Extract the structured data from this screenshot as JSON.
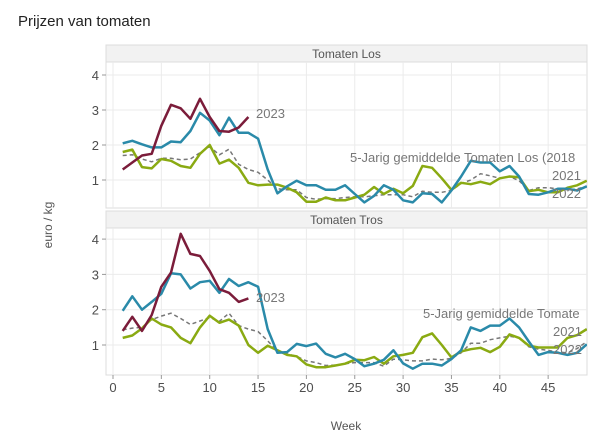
{
  "chart_data": {
    "type": "line",
    "title": "Prijzen van tomaten",
    "xlabel": "Week",
    "ylabel": "euro / kg",
    "xlim": [
      0,
      49
    ],
    "ylim": [
      0.15,
      4.35
    ],
    "x_ticks": [
      0,
      5,
      10,
      15,
      20,
      25,
      30,
      35,
      40,
      45
    ],
    "y_ticks": [
      1,
      2,
      3,
      4
    ],
    "grid": true,
    "colors": {
      "2023": "#7b1c3a",
      "2022": "#2a8aa9",
      "2021": "#8aaa12",
      "avg": "#777777"
    },
    "panels": [
      {
        "strip": "Tomaten Los",
        "labels": {
          "2023": "2023",
          "avg": "5-Jarig gemiddelde Tomaten Los (2018",
          "2021": "2021",
          "2022": "2022"
        },
        "series": [
          {
            "key": "avg",
            "dashed": true,
            "values": [
              1.7,
              1.72,
              1.6,
              1.52,
              1.62,
              1.62,
              1.58,
              1.6,
              1.78,
              1.95,
              1.72,
              1.88,
              1.45,
              1.3,
              1.22,
              1.0,
              0.75,
              0.72,
              0.72,
              0.5,
              0.45,
              0.47,
              0.47,
              0.5,
              0.52,
              0.52,
              0.55,
              0.58,
              0.58,
              0.58,
              0.52,
              0.68,
              0.65,
              0.65,
              0.7,
              0.9,
              1.0,
              1.18,
              1.12,
              1.05,
              1.1,
              0.98,
              0.7,
              0.78,
              0.78,
              0.75,
              0.72,
              0.75,
              0.82
            ]
          },
          {
            "key": "2021",
            "values": [
              1.8,
              1.87,
              1.37,
              1.33,
              1.6,
              1.55,
              1.4,
              1.35,
              1.75,
              2.0,
              1.47,
              1.58,
              1.35,
              0.92,
              0.85,
              0.87,
              0.87,
              0.78,
              0.65,
              0.38,
              0.38,
              0.5,
              0.42,
              0.42,
              0.5,
              0.58,
              0.8,
              0.6,
              0.75,
              0.62,
              0.83,
              1.4,
              1.35,
              1.05,
              0.72,
              0.92,
              0.88,
              0.95,
              0.88,
              1.05,
              1.1,
              1.08,
              0.68,
              0.72,
              0.65,
              0.65,
              0.78,
              0.85,
              0.98
            ]
          },
          {
            "key": "2022",
            "values": [
              2.05,
              2.12,
              2.02,
              1.93,
              1.93,
              2.1,
              2.08,
              2.4,
              2.92,
              2.7,
              2.28,
              2.78,
              2.35,
              2.35,
              2.18,
              1.3,
              0.62,
              0.82,
              0.98,
              0.85,
              0.85,
              0.72,
              0.72,
              0.85,
              0.6,
              0.36,
              0.55,
              0.85,
              0.72,
              0.42,
              0.36,
              0.62,
              0.6,
              0.36,
              0.7,
              1.1,
              1.55,
              1.5,
              1.5,
              1.25,
              1.4,
              1.1,
              0.6,
              0.58,
              0.65,
              0.75,
              0.75,
              0.7,
              0.82
            ]
          },
          {
            "key": "2023",
            "values": [
              1.3,
              1.5,
              1.7,
              1.75,
              2.55,
              3.15,
              3.05,
              2.75,
              3.32,
              2.8,
              2.4,
              2.38,
              2.5,
              2.8
            ]
          }
        ]
      },
      {
        "strip": "Tomaten Tros",
        "labels": {
          "2023": "2023",
          "avg": "5-Jarig gemiddelde Tomate",
          "2021": "2021",
          "2022": "2022"
        },
        "series": [
          {
            "key": "avg",
            "dashed": true,
            "values": [
              1.43,
              1.48,
              1.5,
              1.72,
              1.82,
              1.9,
              1.75,
              1.58,
              1.68,
              1.78,
              1.67,
              1.9,
              1.55,
              1.45,
              1.38,
              1.12,
              0.82,
              0.75,
              0.68,
              0.55,
              0.5,
              0.42,
              0.43,
              0.47,
              0.5,
              0.5,
              0.5,
              0.4,
              0.6,
              0.58,
              0.55,
              0.55,
              0.6,
              0.58,
              0.62,
              0.78,
              1.05,
              1.05,
              1.15,
              1.2,
              1.25,
              1.2,
              0.95,
              0.88,
              0.85,
              0.8,
              0.78,
              0.9,
              1.1
            ]
          },
          {
            "key": "2021",
            "values": [
              1.2,
              1.27,
              1.47,
              1.75,
              1.58,
              1.5,
              1.2,
              1.05,
              1.5,
              1.83,
              1.63,
              1.72,
              1.55,
              1.0,
              0.78,
              0.98,
              0.85,
              0.72,
              0.68,
              0.45,
              0.37,
              0.37,
              0.42,
              0.47,
              0.58,
              0.57,
              0.66,
              0.47,
              0.68,
              0.72,
              0.78,
              1.22,
              1.33,
              1.0,
              0.65,
              0.82,
              0.88,
              0.92,
              0.8,
              0.95,
              1.3,
              1.2,
              0.98,
              0.93,
              0.93,
              0.93,
              1.2,
              1.28,
              1.45
            ]
          },
          {
            "key": "2022",
            "values": [
              1.97,
              2.38,
              2.0,
              2.22,
              2.45,
              3.03,
              3.0,
              2.6,
              2.78,
              2.82,
              2.48,
              2.87,
              2.67,
              2.78,
              2.65,
              1.45,
              0.78,
              0.8,
              1.03,
              0.97,
              1.04,
              0.75,
              0.65,
              0.75,
              0.6,
              0.4,
              0.47,
              0.58,
              0.85,
              0.48,
              0.33,
              0.47,
              0.47,
              0.42,
              0.6,
              0.85,
              1.5,
              1.4,
              1.55,
              1.55,
              1.75,
              1.5,
              1.1,
              0.72,
              0.8,
              0.78,
              0.72,
              0.78,
              1.02
            ]
          },
          {
            "key": "2023",
            "values": [
              1.4,
              1.8,
              1.4,
              1.85,
              2.65,
              3.05,
              4.15,
              3.58,
              3.52,
              3.1,
              2.58,
              2.48,
              2.22,
              2.32
            ]
          }
        ]
      }
    ]
  }
}
